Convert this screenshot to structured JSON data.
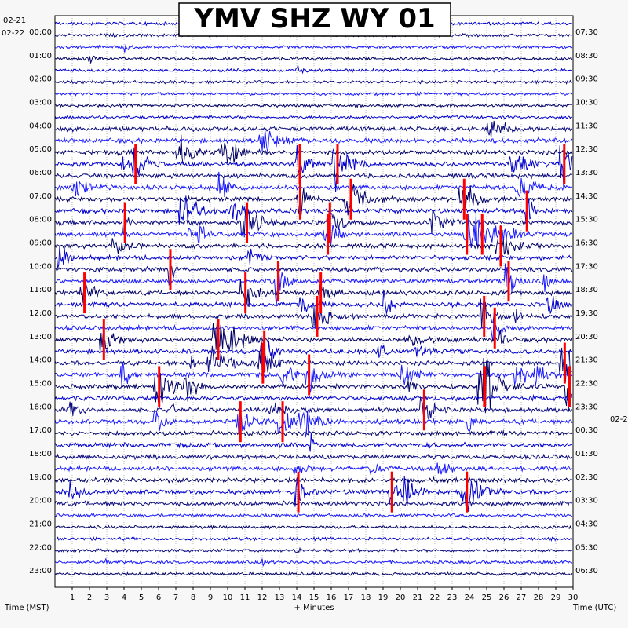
{
  "chart_data": {
    "type": "line",
    "title": "YMV SHZ WY 01",
    "xlabel": "+ Minutes",
    "left_axis_label": "Time (MST)",
    "right_axis_label": "Time (UTC)",
    "left_dates": [
      "02-21",
      "02-22"
    ],
    "right_date": "02-2",
    "x_ticks": [
      "1",
      "2",
      "3",
      "4",
      "5",
      "6",
      "7",
      "8",
      "9",
      "10",
      "11",
      "12",
      "13",
      "14",
      "15",
      "16",
      "17",
      "18",
      "19",
      "20",
      "21",
      "22",
      "23",
      "24",
      "25",
      "26",
      "27",
      "28",
      "29",
      "30"
    ],
    "xlim": [
      0,
      30
    ],
    "left_hour_labels": [
      "00:00",
      "01:00",
      "02:00",
      "03:00",
      "04:00",
      "05:00",
      "06:00",
      "07:00",
      "08:00",
      "09:00",
      "10:00",
      "11:00",
      "12:00",
      "13:00",
      "14:00",
      "15:00",
      "16:00",
      "17:00",
      "18:00",
      "19:00",
      "20:00",
      "21:00",
      "22:00",
      "23:00"
    ],
    "right_hour_labels": [
      "07:30",
      "08:30",
      "09:30",
      "10:30",
      "11:30",
      "12:30",
      "13:30",
      "14:30",
      "15:30",
      "16:30",
      "17:30",
      "18:30",
      "19:30",
      "20:30",
      "21:30",
      "22:30",
      "23:30",
      "00:30",
      "01:30",
      "02:30",
      "03:30",
      "04:30",
      "05:30",
      "06:30"
    ],
    "trace_colors": [
      "#0000cc",
      "#0a0a80",
      "#1a1aff",
      "#000066"
    ],
    "clip_color": "#ff0000",
    "grid": true
  }
}
